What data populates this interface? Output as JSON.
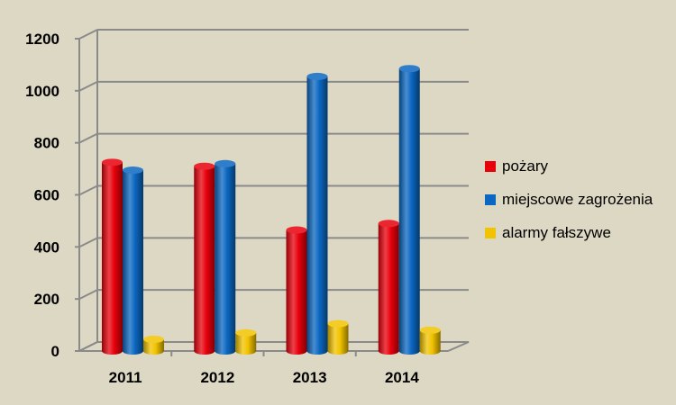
{
  "chart_data": {
    "type": "bar",
    "categories": [
      "2011",
      "2012",
      "2013",
      "2014"
    ],
    "series": [
      {
        "name": "pożary",
        "values": [
          725,
          710,
          465,
          490
        ],
        "color": "#e8000b"
      },
      {
        "name": "miejscowe zagrożenia",
        "values": [
          695,
          720,
          1055,
          1085
        ],
        "color": "#0b67c1"
      },
      {
        "name": "alarmy fałszywe",
        "values": [
          45,
          70,
          105,
          80
        ],
        "color": "#f2c300"
      }
    ],
    "yticks": [
      "0",
      "200",
      "400",
      "600",
      "800",
      "1000",
      "1200"
    ],
    "ylim": [
      0,
      1200
    ],
    "grid": true,
    "legend": "right",
    "style": "3d-cylinder"
  }
}
